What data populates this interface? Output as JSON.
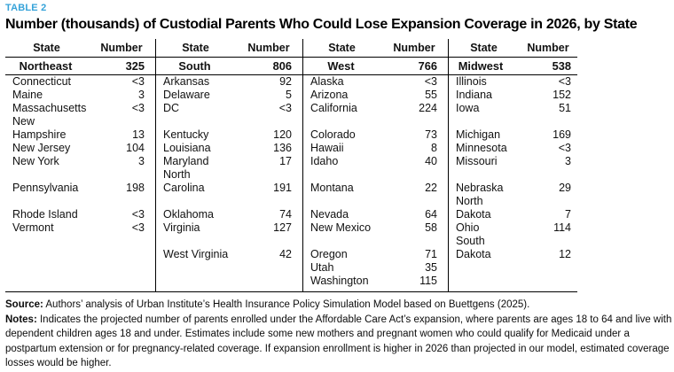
{
  "label": "TABLE 2",
  "title": "Number (thousands) of Custodial Parents Who Could Lose Expansion Coverage in 2026, by State",
  "colors": {
    "accent": "#36a3d9",
    "text": "#111111",
    "rule": "#000000"
  },
  "table": {
    "columns": {
      "state": "State",
      "number": "Number"
    },
    "regions": [
      {
        "name": "Northeast",
        "total": "325"
      },
      {
        "name": "South",
        "total": "806"
      },
      {
        "name": "West",
        "total": "766"
      },
      {
        "name": "Midwest",
        "total": "538"
      }
    ],
    "rows": [
      [
        {
          "s": "Connecticut",
          "n": "<3"
        },
        {
          "s": "Arkansas",
          "n": "92"
        },
        {
          "s": "Alaska",
          "n": "<3"
        },
        {
          "s": "Illinois",
          "n": "<3"
        }
      ],
      [
        {
          "s": "Maine",
          "n": "3"
        },
        {
          "s": "Delaware",
          "n": "5"
        },
        {
          "s": "Arizona",
          "n": "55"
        },
        {
          "s": "Indiana",
          "n": "152"
        }
      ],
      [
        {
          "s": "Massachusetts",
          "n": "<3"
        },
        {
          "s": "DC",
          "n": "<3"
        },
        {
          "s": "California",
          "n": "224"
        },
        {
          "s": "Iowa",
          "n": "51"
        }
      ],
      [
        {
          "s": "New\nHampshire",
          "n": "13"
        },
        {
          "s": "Kentucky",
          "n": "120"
        },
        {
          "s": "Colorado",
          "n": "73"
        },
        {
          "s": "Michigan",
          "n": "169"
        }
      ],
      [
        {
          "s": "New Jersey",
          "n": "104"
        },
        {
          "s": "Louisiana",
          "n": "136"
        },
        {
          "s": "Hawaii",
          "n": "8"
        },
        {
          "s": "Minnesota",
          "n": "<3"
        }
      ],
      [
        {
          "s": "New York",
          "n": "3"
        },
        {
          "s": "Maryland",
          "n": "17"
        },
        {
          "s": "Idaho",
          "n": "40"
        },
        {
          "s": "Missouri",
          "n": "3"
        }
      ],
      [
        {
          "s": "Pennsylvania",
          "n": "198"
        },
        {
          "s": "North\nCarolina",
          "n": "191"
        },
        {
          "s": "Montana",
          "n": "22"
        },
        {
          "s": "Nebraska",
          "n": "29"
        }
      ],
      [
        {
          "s": "Rhode Island",
          "n": "<3"
        },
        {
          "s": "Oklahoma",
          "n": "74"
        },
        {
          "s": "Nevada",
          "n": "64"
        },
        {
          "s": "North\nDakota",
          "n": "7"
        }
      ],
      [
        {
          "s": "Vermont",
          "n": "<3"
        },
        {
          "s": "Virginia",
          "n": "127"
        },
        {
          "s": "New Mexico",
          "n": "58"
        },
        {
          "s": "Ohio",
          "n": "114"
        }
      ],
      [
        {
          "s": "",
          "n": ""
        },
        {
          "s": "West Virginia",
          "n": "42"
        },
        {
          "s": "Oregon",
          "n": "71"
        },
        {
          "s": "South\nDakota",
          "n": "12"
        }
      ],
      [
        {
          "s": "",
          "n": ""
        },
        {
          "s": "",
          "n": ""
        },
        {
          "s": "Utah",
          "n": "35"
        },
        {
          "s": "",
          "n": ""
        }
      ],
      [
        {
          "s": "",
          "n": ""
        },
        {
          "s": "",
          "n": ""
        },
        {
          "s": "Washington",
          "n": "115"
        },
        {
          "s": "",
          "n": ""
        }
      ]
    ]
  },
  "footnotes": {
    "source_label": "Source:",
    "source_text": " Authors’ analysis of Urban Institute’s Health Insurance Policy Simulation Model based on Buettgens (2025).",
    "notes_label": "Notes:",
    "notes_text": " Indicates the projected number of parents enrolled under the Affordable Care Act’s expansion, where parents are ages 18 to 64 and live with dependent children ages 18 and under. Estimates include some new mothers and pregnant women who could qualify for Medicaid under a postpartum extension or for pregnancy-related coverage. If expansion enrollment is higher in 2026 than projected in our model, estimated coverage losses would be higher."
  }
}
